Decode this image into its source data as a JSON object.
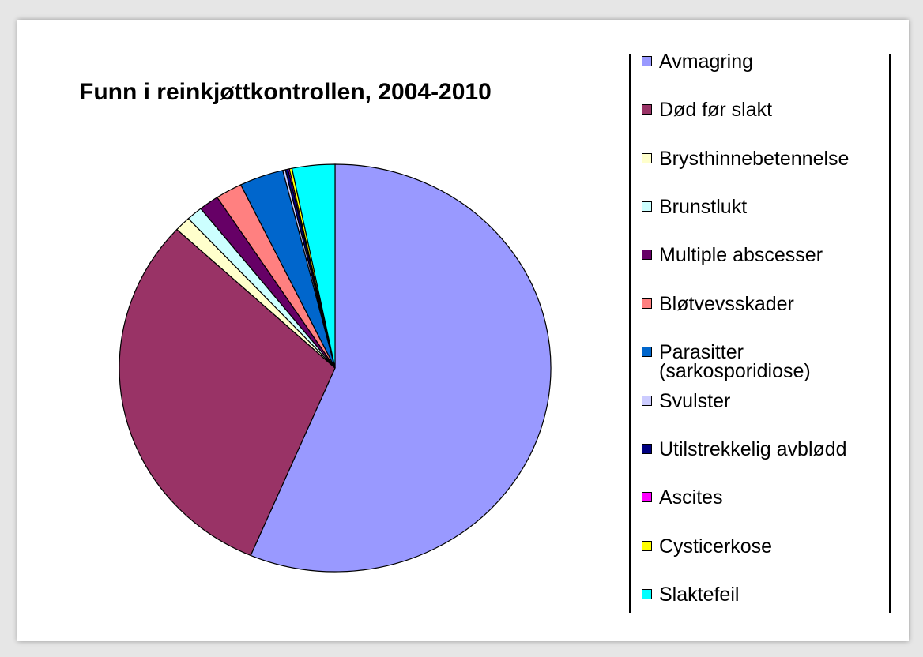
{
  "chart_data": {
    "type": "pie",
    "title": "Funn i reinkjøttkontrollen, 2004-2010",
    "categories": [
      "Avmagring",
      "Død før slakt",
      "Brysthinnebetennelse",
      "Brunstlukt",
      "Multiple abscesser",
      "Bløtvevsskader",
      "Parasitter (sarkosporidiose)",
      "Svulster",
      "Utilstrekkelig avblødd",
      "Ascites",
      "Cysticerkose",
      "Slaktefeil"
    ],
    "values": [
      56.4,
      30.5,
      1.2,
      1.2,
      1.5,
      2.0,
      3.3,
      0.2,
      0.2,
      0.1,
      0.2,
      3.2
    ],
    "colors": [
      "#9999ff",
      "#993366",
      "#ffffcc",
      "#ccffff",
      "#660066",
      "#ff8080",
      "#0066cc",
      "#ccccff",
      "#000080",
      "#ff00ff",
      "#ffff00",
      "#00ffff"
    ],
    "legend": "right"
  }
}
